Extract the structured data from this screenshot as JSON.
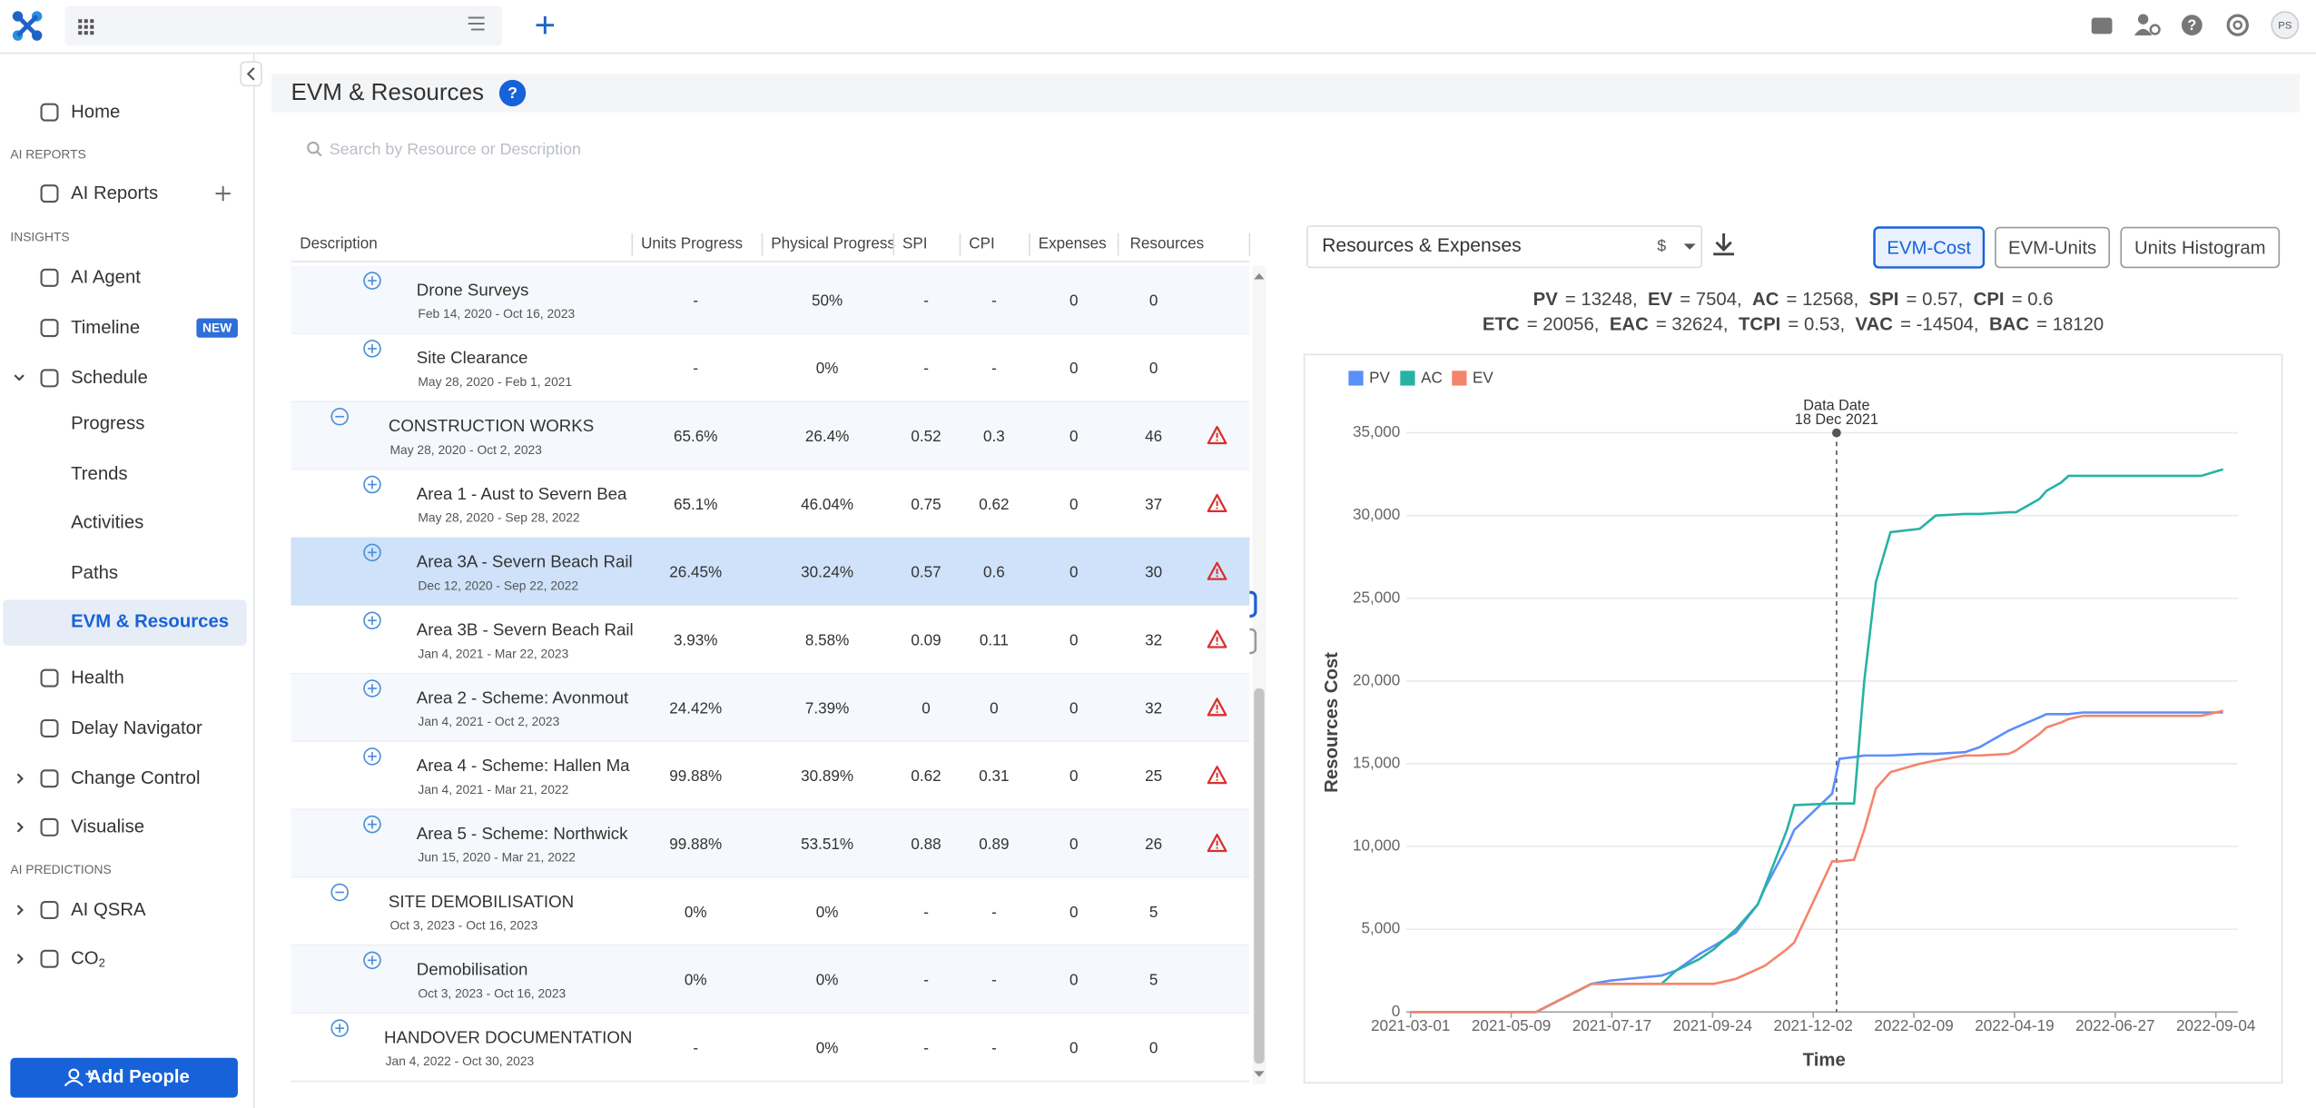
{
  "topbar": {
    "avatar": "PS"
  },
  "sidebar": {
    "items": [
      {
        "label": "Home"
      },
      {
        "section": "AI REPORTS"
      },
      {
        "label": "AI Reports",
        "add": true
      },
      {
        "section": "INSIGHTS"
      },
      {
        "label": "AI Agent"
      },
      {
        "label": "Timeline",
        "badge": "NEW"
      },
      {
        "label": "Schedule",
        "chevron": "down"
      },
      {
        "label": "Progress",
        "level": 1
      },
      {
        "label": "Trends",
        "level": 1
      },
      {
        "label": "Activities",
        "level": 1
      },
      {
        "label": "Paths",
        "level": 1
      },
      {
        "label": "EVM & Resources",
        "level": 1,
        "active": true
      },
      {
        "label": "Health"
      },
      {
        "label": "Delay Navigator"
      },
      {
        "label": "Change Control",
        "chevron": "right"
      },
      {
        "label": "Visualise",
        "chevron": "right"
      },
      {
        "section": "AI PREDICTIONS"
      },
      {
        "label": "AI QSRA",
        "chevron": "right"
      },
      {
        "label": "CO",
        "sub": "2",
        "chevron": "right"
      }
    ],
    "button": "Add People"
  },
  "header": {
    "title": "EVM & Resources",
    "help": "?"
  },
  "search": {
    "placeholder": "Search by Resource or Description"
  },
  "table": {
    "columns": [
      "Description",
      "Units Progress",
      "Physical Progress",
      "SPI",
      "CPI",
      "Expenses",
      "Resources"
    ],
    "rows": [
      {
        "description": "Drone Surveys",
        "dates": "Feb 14, 2020 - Oct 16, 2023",
        "cells": [
          "-",
          "50%",
          "-",
          "-",
          "0",
          "0"
        ],
        "level": 2,
        "toggle": "plus"
      },
      {
        "description": "Site Clearance",
        "dates": "May 28, 2020 - Feb 1, 2021",
        "cells": [
          "-",
          "0%",
          "-",
          "-",
          "0",
          "0"
        ],
        "level": 2,
        "toggle": "plus"
      },
      {
        "description": "CONSTRUCTION WORKS",
        "dates": "May 28, 2020 - Oct 2, 2023",
        "cells": [
          "65.6%",
          "26.4%",
          "0.52",
          "0.3",
          "0",
          "46"
        ],
        "level": 1,
        "toggle": "minus",
        "warning": true
      },
      {
        "description": "Area 1 - Aust to Severn Bea",
        "dates": "May 28, 2020 - Sep 28, 2022",
        "cells": [
          "65.1%",
          "46.04%",
          "0.75",
          "0.62",
          "0",
          "37"
        ],
        "level": 2,
        "toggle": "plus",
        "warning": true
      },
      {
        "description": "Area 3A - Severn Beach Rail",
        "dates": "Dec 12, 2020 - Sep 22, 2022",
        "cells": [
          "26.45%",
          "30.24%",
          "0.57",
          "0.6",
          "0",
          "30"
        ],
        "level": 2,
        "toggle": "plus",
        "warning": true,
        "selected": true
      },
      {
        "description": "Area 3B - Severn Beach Rail",
        "dates": "Jan 4, 2021 - Mar 22, 2023",
        "cells": [
          "3.93%",
          "8.58%",
          "0.09",
          "0.11",
          "0",
          "32"
        ],
        "level": 2,
        "toggle": "plus",
        "warning": true
      },
      {
        "description": "Area 2 - Scheme: Avonmout",
        "dates": "Jan 4, 2021 - Oct 2, 2023",
        "cells": [
          "24.42%",
          "7.39%",
          "0",
          "0",
          "0",
          "32"
        ],
        "level": 2,
        "toggle": "plus",
        "warning": true
      },
      {
        "description": "Area 4 - Scheme: Hallen Ma",
        "dates": "Jan 4, 2021 - Mar 21, 2022",
        "cells": [
          "99.88%",
          "30.89%",
          "0.62",
          "0.31",
          "0",
          "25"
        ],
        "level": 2,
        "toggle": "plus",
        "warning": true
      },
      {
        "description": "Area 5 - Scheme: Northwick",
        "dates": "Jun 15, 2020 - Mar 21, 2022",
        "cells": [
          "99.88%",
          "53.51%",
          "0.88",
          "0.89",
          "0",
          "26"
        ],
        "level": 2,
        "toggle": "plus",
        "warning": true
      },
      {
        "description": "SITE DEMOBILISATION",
        "dates": "Oct 3, 2023 - Oct 16, 2023",
        "cells": [
          "0%",
          "0%",
          "-",
          "-",
          "0",
          "5"
        ],
        "level": 1,
        "toggle": "minus"
      },
      {
        "description": "Demobilisation",
        "dates": "Oct 3, 2023 - Oct 16, 2023",
        "cells": [
          "0%",
          "0%",
          "-",
          "-",
          "0",
          "5"
        ],
        "level": 2,
        "toggle": "plus"
      },
      {
        "description": "HANDOVER DOCUMENTATION",
        "dates": "Jan 4, 2022 - Oct 30, 2023",
        "cells": [
          "-",
          "0%",
          "-",
          "-",
          "0",
          "0"
        ],
        "level": 0,
        "toggle": "plus"
      }
    ]
  },
  "panel": {
    "dropdown": "Resources & Expenses",
    "currency": "$",
    "buttons": [
      {
        "label": "EVM-Cost",
        "active": true
      },
      {
        "label": "EVM-Units"
      },
      {
        "label": "Units Histogram"
      }
    ],
    "metrics": [
      [
        {
          "label": "PV",
          "text": "= 13248,"
        },
        {
          "label": "EV",
          "text": "= 7504,"
        },
        {
          "label": "AC",
          "text": "= 12568,"
        },
        {
          "label": "SPI",
          "text": "= 0.57,"
        },
        {
          "label": "CPI",
          "text": "= 0.6"
        }
      ],
      [
        {
          "label": "ETC",
          "text": "= 20056,"
        },
        {
          "label": "EAC",
          "text": "= 32624,"
        },
        {
          "label": "TCPI",
          "text": "= 0.53,"
        },
        {
          "label": "VAC",
          "text": "= -14504,"
        },
        {
          "label": "BAC",
          "text": "= 18120"
        }
      ]
    ]
  },
  "chart_data": {
    "type": "line",
    "xlabel": "Time",
    "ylabel": "Resources Cost",
    "x": [
      "2021-03-01",
      "2021-05-26",
      "2021-07-03",
      "2021-07-16",
      "2021-08-20",
      "2021-08-30",
      "2021-09-15",
      "2021-09-25",
      "2021-10-10",
      "2021-10-25",
      "2021-10-30",
      "2021-11-14",
      "2021-11-19",
      "2021-12-15",
      "2021-12-20",
      "2021-12-30",
      "2022-01-06",
      "2022-01-14",
      "2022-01-24",
      "2022-02-13",
      "2022-02-24",
      "2022-03-16",
      "2022-03-26",
      "2022-04-15",
      "2022-04-20",
      "2022-05-06",
      "2022-05-11",
      "2022-05-21",
      "2022-05-26",
      "2022-06-05",
      "2022-08-25",
      "2022-09-09"
    ],
    "series": [
      {
        "name": "PV",
        "color": "#5b8ff9",
        "values": [
          0,
          0,
          1700,
          1900,
          2200,
          2500,
          3500,
          4000,
          4800,
          6500,
          7500,
          10000,
          11000,
          13200,
          15300,
          15400,
          15500,
          15500,
          15500,
          15600,
          15600,
          15700,
          16000,
          17000,
          17200,
          17800,
          18000,
          18000,
          18000,
          18100,
          18100,
          18100
        ]
      },
      {
        "name": "AC",
        "color": "#26b3a3",
        "values": [
          0,
          0,
          1700,
          1700,
          1700,
          2500,
          3200,
          3800,
          5000,
          6500,
          7600,
          11000,
          12500,
          12600,
          12600,
          12600,
          20000,
          26000,
          29000,
          29200,
          30000,
          30100,
          30100,
          30200,
          30200,
          31000,
          31500,
          32000,
          32400,
          32400,
          32400,
          32800
        ]
      },
      {
        "name": "EV",
        "color": "#f4846b",
        "values": [
          0,
          0,
          1700,
          1700,
          1700,
          1700,
          1700,
          1700,
          2000,
          2600,
          2800,
          3800,
          4200,
          9100,
          9100,
          9200,
          11000,
          13500,
          14500,
          15000,
          15200,
          15500,
          15500,
          15600,
          15800,
          16800,
          17200,
          17500,
          17700,
          17900,
          17900,
          18200
        ]
      }
    ],
    "xlim": [
      "2021-03-01",
      "2022-09-19"
    ],
    "xticks": [
      "2021-03-01",
      "2021-05-09",
      "2021-07-17",
      "2021-09-24",
      "2021-12-02",
      "2022-02-09",
      "2022-04-19",
      "2022-06-27",
      "2022-09-04"
    ],
    "ylim": [
      0,
      35000
    ],
    "yticks": [
      0,
      {
        "value": 5000,
        "label": "5,000"
      },
      {
        "value": 10000,
        "label": "10,000"
      },
      {
        "value": 15000,
        "label": "15,000"
      },
      {
        "value": 20000,
        "label": "20,000"
      },
      {
        "value": 25000,
        "label": "25,000"
      },
      {
        "value": 30000,
        "label": "30,000"
      },
      {
        "value": 35000,
        "label": "35,000"
      }
    ],
    "grid": true,
    "legend": "top-left",
    "annotations": [
      {
        "x": "2021-12-18",
        "label": "Data Date",
        "sublabel": "18 Dec 2021"
      }
    ]
  }
}
